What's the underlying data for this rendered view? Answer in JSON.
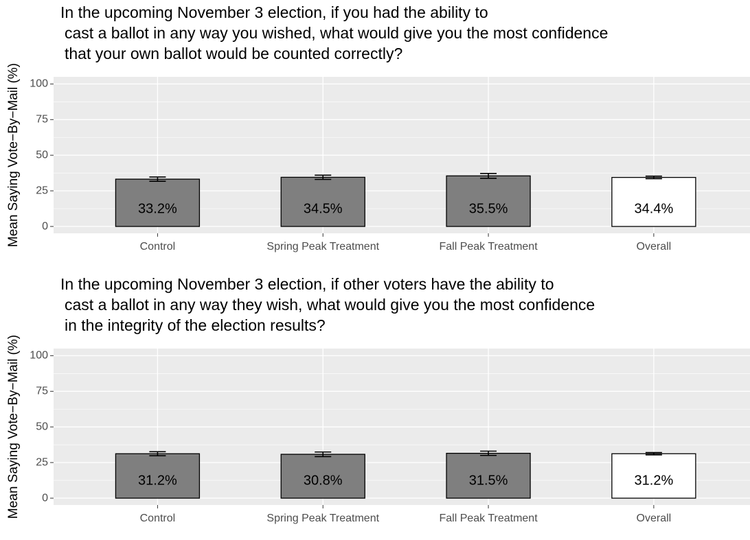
{
  "chart_data": [
    {
      "type": "bar",
      "title": [
        "In the upcoming November 3 election, if you had the ability to",
        "cast a ballot in any way you wished, what would give you the most confidence",
        "that your own ballot would be counted correctly?"
      ],
      "ylabel": "Mean Saying Vote−By−Mail (%)",
      "categories": [
        "Control",
        "Spring Peak Treatment",
        "Fall Peak Treatment",
        "Overall"
      ],
      "values": [
        33.2,
        34.5,
        35.5,
        34.4
      ],
      "value_labels": [
        "33.2%",
        "34.5%",
        "35.5%",
        "34.4%"
      ],
      "errors": [
        1.5,
        1.5,
        1.7,
        0.9
      ],
      "colors": [
        "#7f7f7f",
        "#7f7f7f",
        "#7f7f7f",
        "#ffffff"
      ],
      "ylim": [
        -4.8,
        105
      ],
      "yticks": [
        0,
        25,
        50,
        75,
        100
      ],
      "grid": true
    },
    {
      "type": "bar",
      "title": [
        "In the upcoming November 3 election, if other voters have the ability to",
        "cast a ballot in any way they wish, what would give you the most confidence",
        "in the integrity of the election results?"
      ],
      "ylabel": "Mean Saying Vote−By−Mail (%)",
      "categories": [
        "Control",
        "Spring Peak Treatment",
        "Fall Peak Treatment",
        "Overall"
      ],
      "values": [
        31.2,
        30.8,
        31.5,
        31.2
      ],
      "value_labels": [
        "31.2%",
        "30.8%",
        "31.5%",
        "31.2%"
      ],
      "errors": [
        1.4,
        1.6,
        1.5,
        0.8
      ],
      "colors": [
        "#7f7f7f",
        "#7f7f7f",
        "#7f7f7f",
        "#ffffff"
      ],
      "ylim": [
        -4.8,
        105
      ],
      "yticks": [
        0,
        25,
        50,
        75,
        100
      ],
      "grid": true
    }
  ]
}
